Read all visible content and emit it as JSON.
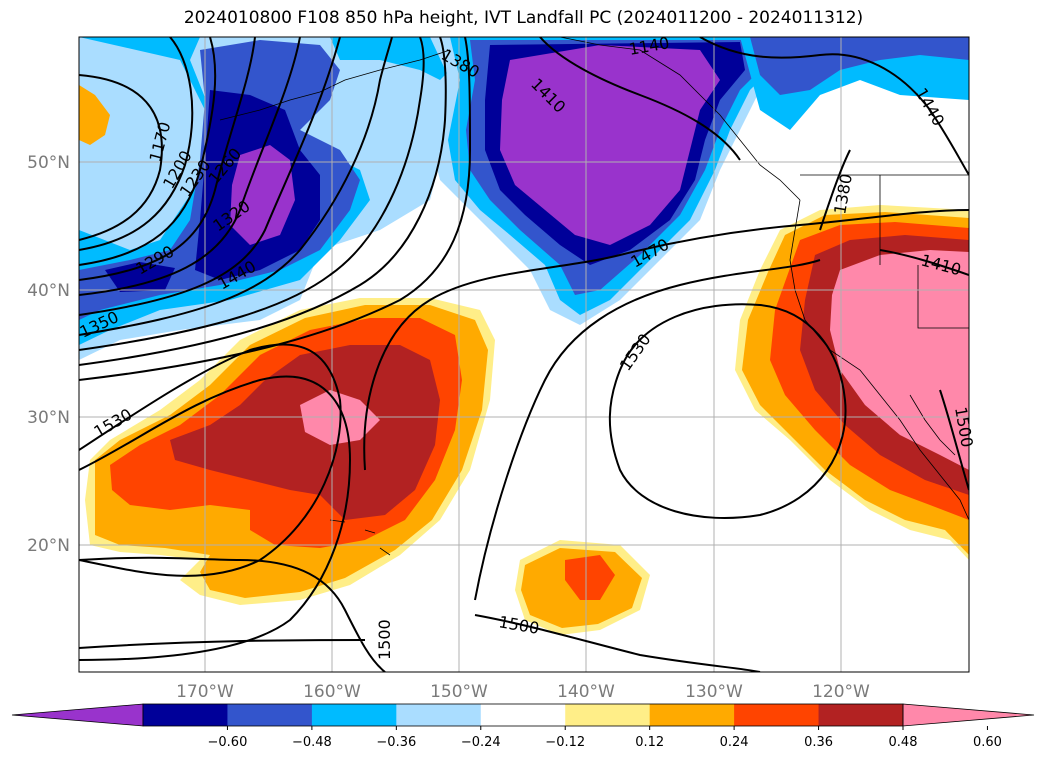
{
  "title": "2024010800 F108 850 hPa height, IVT Landfall PC (2024011200 - 2024011312)",
  "lon_labels": [
    "170°W",
    "160°W",
    "150°W",
    "140°W",
    "130°W",
    "120°W"
  ],
  "lat_labels": [
    "50°N",
    "40°N",
    "30°N",
    "20°N"
  ],
  "colorbar": {
    "ticks": [
      "−0.60",
      "−0.48",
      "−0.36",
      "−0.24",
      "−0.12",
      "0.12",
      "0.24",
      "0.36",
      "0.48",
      "0.60"
    ],
    "colors": [
      "#9933cc",
      "#000099",
      "#3355cc",
      "#00bbff",
      "#aaddff",
      "#ffffff",
      "#ffee88",
      "#ffaa00",
      "#ff4400",
      "#b22222",
      "#ff88aa"
    ]
  },
  "contour_labels": [
    "1170",
    "1200",
    "1230",
    "1260",
    "1290",
    "1320",
    "1350",
    "1380",
    "1410",
    "1440",
    "1470",
    "1500",
    "1530",
    "1140",
    "1380",
    "1410",
    "1440",
    "1500",
    "1500",
    "1530",
    "1500"
  ],
  "colors": {
    "purple": "#9933cc",
    "navy": "#000099",
    "blue": "#3355cc",
    "cyan": "#00bbff",
    "lightblue": "#aaddff",
    "yellow": "#ffee88",
    "orange": "#ffaa00",
    "redorange": "#ff4400",
    "darkred": "#b22222",
    "pink": "#ff88aa"
  }
}
